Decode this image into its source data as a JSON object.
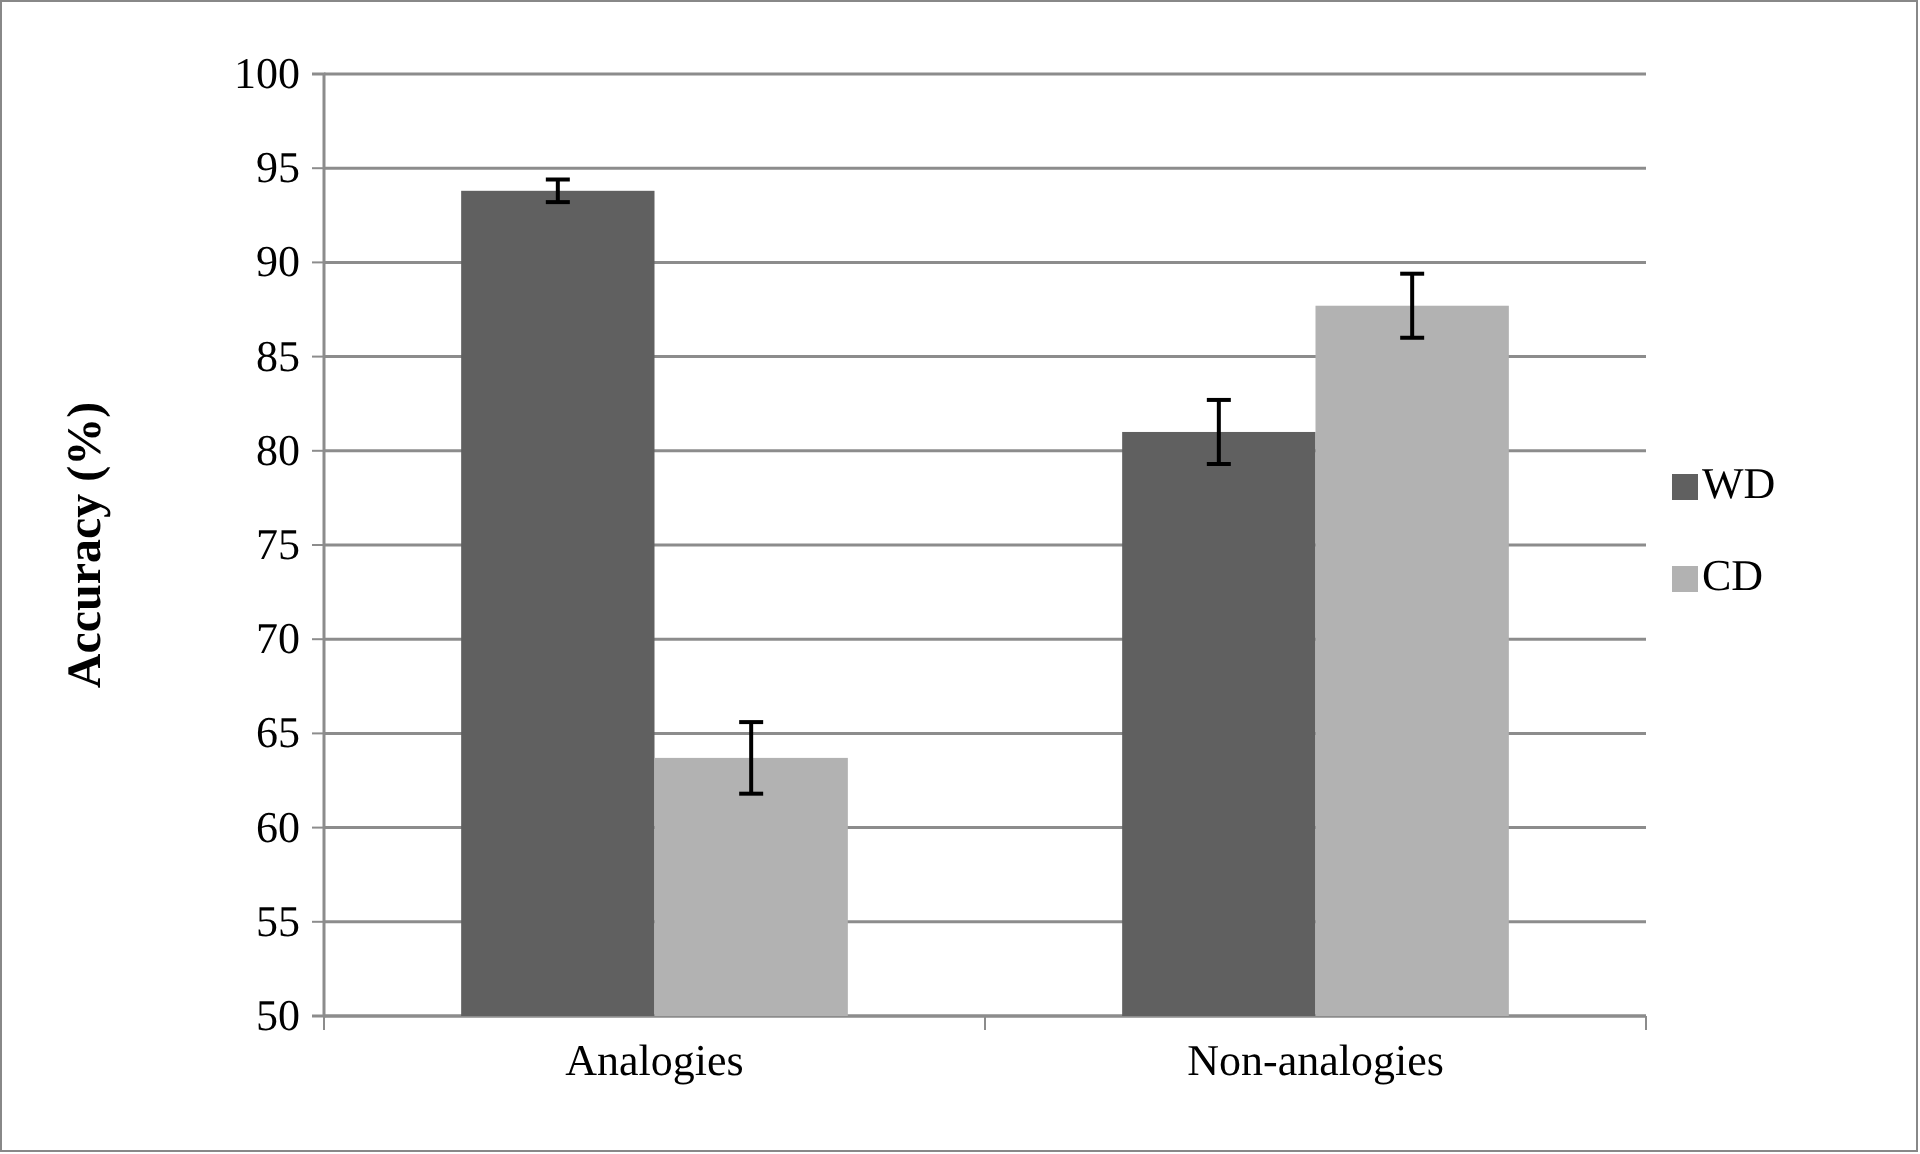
{
  "chart_data": {
    "type": "bar",
    "ylabel": "Accuracy (%)",
    "categories": [
      "Analogies",
      "Non-analogies"
    ],
    "series": [
      {
        "name": "WD",
        "color": "#606060",
        "values": [
          93.8,
          81.0
        ],
        "errors": [
          0.6,
          1.7
        ]
      },
      {
        "name": "CD",
        "color": "#b2b2b2",
        "values": [
          63.7,
          87.7
        ],
        "errors": [
          1.9,
          1.7
        ]
      }
    ],
    "ylim": [
      50,
      100
    ],
    "yticks": [
      50,
      55,
      60,
      65,
      70,
      75,
      80,
      85,
      90,
      95,
      100
    ],
    "grid": "y",
    "legend": "right"
  }
}
